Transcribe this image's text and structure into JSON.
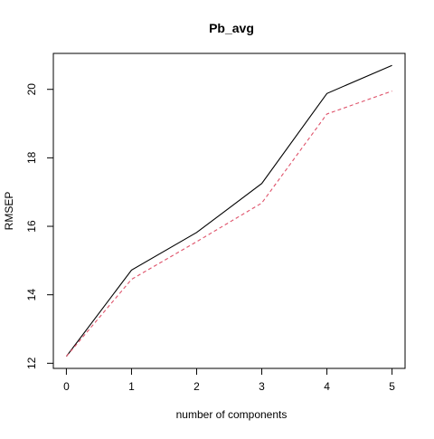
{
  "chart_data": {
    "type": "line",
    "title": "Pb_avg",
    "xlabel": "number of components",
    "ylabel": "RMSEP",
    "xlim": [
      -0.2,
      5.2
    ],
    "ylim": [
      11.85,
      21.05
    ],
    "x_ticks": [
      0,
      1,
      2,
      3,
      4,
      5
    ],
    "y_ticks": [
      12,
      14,
      16,
      18,
      20
    ],
    "x": [
      0,
      1,
      2,
      3,
      4,
      5
    ],
    "series": [
      {
        "values": [
          12.2,
          14.72,
          15.82,
          17.25,
          19.88,
          20.7
        ],
        "color": "#000000",
        "style": "solid"
      },
      {
        "values": [
          12.2,
          14.45,
          15.55,
          16.68,
          19.28,
          19.95
        ],
        "color": "#DF536B",
        "style": "dashed"
      }
    ],
    "grid": false,
    "legend": "none"
  }
}
